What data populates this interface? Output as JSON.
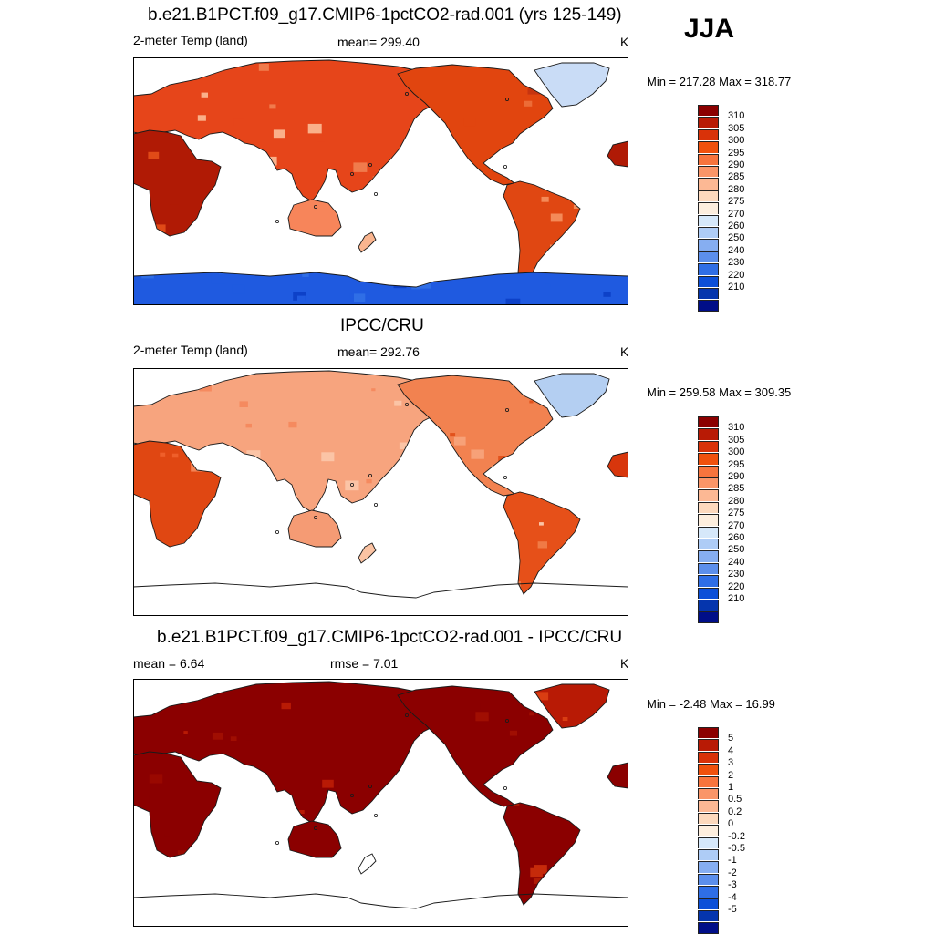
{
  "season": "JJA",
  "panels": [
    {
      "title": "b.e21.B1PCT.f09_g17.CMIP6-1pctCO2-rad.001 (yrs 125-149)",
      "left_label": "2-meter Temp (land)",
      "mid_label": "mean= 299.40",
      "right_label": "K",
      "minmax": "Min = 217.28 Max = 318.77",
      "variant": "model",
      "colorbar": {
        "colors": [
          "#8b0000",
          "#b81a05",
          "#d93209",
          "#f0510d",
          "#f7743d",
          "#fa9568",
          "#fcb894",
          "#fdd9bd",
          "#fdeede",
          "#d6e8fa",
          "#aeccf6",
          "#86aef1",
          "#5c8fec",
          "#2f6ee6",
          "#0c4fd8",
          "#0535ad",
          "#000e88"
        ],
        "ticks": [
          "310",
          "305",
          "300",
          "295",
          "290",
          "285",
          "280",
          "275",
          "270",
          "260",
          "250",
          "240",
          "230",
          "220",
          "210"
        ]
      }
    },
    {
      "title": "IPCC/CRU",
      "left_label": "2-meter Temp (land)",
      "mid_label": "mean= 292.76",
      "right_label": "K",
      "minmax": "Min = 259.58 Max = 309.35",
      "variant": "obs",
      "colorbar": {
        "colors": [
          "#8b0000",
          "#b81a05",
          "#d93209",
          "#f0510d",
          "#f7743d",
          "#fa9568",
          "#fcb894",
          "#fdd9bd",
          "#fdeede",
          "#d6e8fa",
          "#aeccf6",
          "#86aef1",
          "#5c8fec",
          "#2f6ee6",
          "#0c4fd8",
          "#0535ad",
          "#000e88"
        ],
        "ticks": [
          "310",
          "305",
          "300",
          "295",
          "290",
          "285",
          "280",
          "275",
          "270",
          "260",
          "250",
          "240",
          "230",
          "220",
          "210"
        ]
      }
    },
    {
      "title": "b.e21.B1PCT.f09_g17.CMIP6-1pctCO2-rad.001 - IPCC/CRU",
      "left_label": "mean =   6.64",
      "mid_label": "rmse =   7.01",
      "right_label": "K",
      "minmax": "Min =  -2.48 Max =  16.99",
      "variant": "diff",
      "colorbar": {
        "colors": [
          "#8b0000",
          "#b81a05",
          "#d93209",
          "#f0510d",
          "#f7743d",
          "#fa9568",
          "#fcb894",
          "#fdd9bd",
          "#fdeede",
          "#d6e8fa",
          "#aeccf6",
          "#86aef1",
          "#5c8fec",
          "#2f6ee6",
          "#0c4fd8",
          "#0535ad",
          "#000e88"
        ],
        "ticks": [
          "5",
          "4",
          "3",
          "2",
          "1",
          "0.5",
          "0.2",
          "0",
          "-0.2",
          "-0.5",
          "-1",
          "-2",
          "-3",
          "-4",
          "-5"
        ]
      }
    }
  ]
}
